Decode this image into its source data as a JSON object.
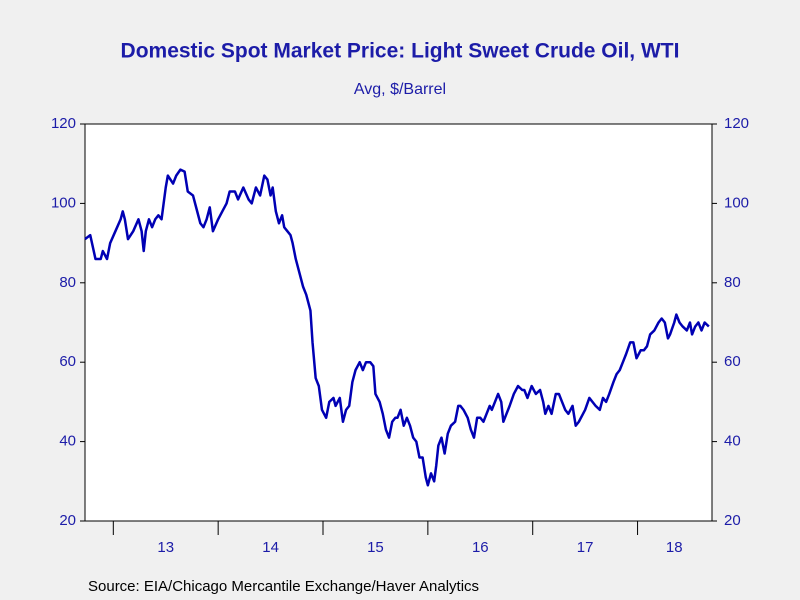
{
  "chart_data": {
    "type": "line",
    "title": "Domestic Spot Market Price: Light Sweet Crude Oil, WTI",
    "subtitle": "Avg, $/Barrel",
    "source": "Source:  EIA/Chicago Mercantile Exchange/Haver Analytics",
    "xlim": [
      2012.73,
      2018.71
    ],
    "xticks": [
      2013,
      2014,
      2015,
      2016,
      2017,
      2018
    ],
    "xlabels": [
      {
        "value": 2013.5,
        "label": "13"
      },
      {
        "value": 2014.5,
        "label": "14"
      },
      {
        "value": 2015.5,
        "label": "15"
      },
      {
        "value": 2016.5,
        "label": "16"
      },
      {
        "value": 2017.5,
        "label": "17"
      },
      {
        "value": 2018.35,
        "label": "18"
      }
    ],
    "ylim": [
      20,
      120
    ],
    "yticks": [
      20,
      40,
      60,
      80,
      100,
      120
    ],
    "y2lim": [
      20,
      120
    ],
    "y2ticks": [
      20,
      40,
      60,
      80,
      100,
      120
    ],
    "series": [
      {
        "color": "#0000b4",
        "x": [
          2012.73,
          2012.78,
          2012.83,
          2012.88,
          2012.9,
          2012.94,
          2012.97,
          2013.02,
          2013.07,
          2013.09,
          2013.11,
          2013.14,
          2013.19,
          2013.24,
          2013.27,
          2013.29,
          2013.31,
          2013.34,
          2013.37,
          2013.4,
          2013.43,
          2013.46,
          2013.5,
          2013.52,
          2013.57,
          2013.6,
          2013.64,
          2013.68,
          2013.71,
          2013.76,
          2013.79,
          2013.83,
          2013.86,
          2013.89,
          2013.92,
          2013.95,
          2014.0,
          2014.04,
          2014.08,
          2014.11,
          2014.16,
          2014.19,
          2014.24,
          2014.29,
          2014.32,
          2014.36,
          2014.4,
          2014.44,
          2014.47,
          2014.5,
          2014.52,
          2014.55,
          2014.58,
          2014.61,
          2014.63,
          2014.66,
          2014.69,
          2014.71,
          2014.74,
          2014.78,
          2014.81,
          2014.84,
          2014.88,
          2014.9,
          2014.93,
          2014.96,
          2014.99,
          2015.03,
          2015.06,
          2015.1,
          2015.12,
          2015.16,
          2015.19,
          2015.22,
          2015.25,
          2015.28,
          2015.31,
          2015.35,
          2015.38,
          2015.41,
          2015.45,
          2015.48,
          2015.5,
          2015.54,
          2015.57,
          2015.6,
          2015.63,
          2015.66,
          2015.69,
          2015.71,
          2015.74,
          2015.77,
          2015.8,
          2015.83,
          2015.86,
          2015.89,
          2015.92,
          2015.95,
          2015.98,
          2016.0,
          2016.03,
          2016.06,
          2016.08,
          2016.1,
          2016.13,
          2016.16,
          2016.19,
          2016.22,
          2016.26,
          2016.29,
          2016.31,
          2016.34,
          2016.38,
          2016.41,
          2016.44,
          2016.47,
          2016.5,
          2016.53,
          2016.56,
          2016.59,
          2016.61,
          2016.64,
          2016.67,
          2016.7,
          2016.72,
          2016.75,
          2016.78,
          2016.82,
          2016.86,
          2016.9,
          2016.92,
          2016.95,
          2016.99,
          2017.03,
          2017.07,
          2017.1,
          2017.12,
          2017.15,
          2017.18,
          2017.22,
          2017.25,
          2017.28,
          2017.31,
          2017.34,
          2017.38,
          2017.41,
          2017.44,
          2017.48,
          2017.5,
          2017.54,
          2017.57,
          2017.6,
          2017.64,
          2017.67,
          2017.7,
          2017.73,
          2017.77,
          2017.8,
          2017.83,
          2017.86,
          2017.89,
          2017.93,
          2017.96,
          2017.99,
          2018.03,
          2018.06,
          2018.09,
          2018.12,
          2018.16,
          2018.2,
          2018.23,
          2018.26,
          2018.29,
          2018.31,
          2018.35,
          2018.37,
          2018.4,
          2018.43,
          2018.47,
          2018.5,
          2018.52,
          2018.55,
          2018.58,
          2018.61,
          2018.64,
          2018.68
        ],
        "values": [
          91,
          92,
          86,
          86,
          88,
          86,
          90,
          93,
          96,
          98,
          96,
          91,
          93,
          96,
          93,
          88,
          93,
          96,
          94,
          96,
          97,
          96,
          104,
          107,
          105,
          107,
          108.5,
          108,
          103,
          102,
          99,
          95,
          94,
          96,
          99,
          93,
          96,
          98,
          100,
          103,
          103,
          101,
          104,
          101,
          100,
          104,
          102,
          107,
          106,
          102,
          104,
          98,
          95,
          97,
          94,
          93,
          92,
          90,
          86,
          82,
          79,
          77,
          73,
          65,
          56,
          54,
          48,
          46,
          50,
          51,
          49,
          51,
          45,
          48,
          49,
          55,
          58,
          60,
          58,
          60,
          60,
          59,
          52,
          50,
          47,
          43,
          41,
          45,
          46,
          46,
          48,
          44,
          46,
          44,
          41,
          40,
          36,
          36,
          31,
          29,
          32,
          30,
          34,
          39,
          41,
          37,
          42,
          44,
          45,
          49,
          49,
          48,
          46,
          43,
          41,
          46,
          46,
          45,
          47,
          49,
          48,
          50,
          52,
          50,
          45,
          47,
          49,
          52,
          54,
          53,
          53,
          51,
          54,
          52,
          53,
          50,
          47,
          49,
          47,
          52,
          52,
          50,
          48,
          47,
          49,
          44,
          45,
          47,
          48,
          51,
          50,
          49,
          48,
          51,
          50,
          52,
          55,
          57,
          58,
          60,
          62,
          65,
          65,
          61,
          63,
          63,
          64,
          67,
          68,
          70,
          71,
          70,
          66,
          67,
          70,
          72,
          70,
          69,
          68,
          70,
          67,
          69,
          70,
          68,
          70,
          69
        ]
      }
    ]
  }
}
